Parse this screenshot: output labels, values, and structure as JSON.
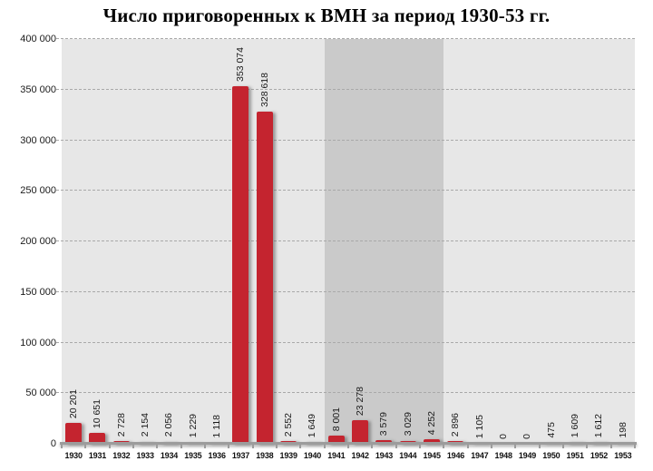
{
  "page": {
    "background": "#ffffff"
  },
  "chart_data": {
    "type": "bar",
    "title": "Число приговоренных к ВМН за период 1930-53 гг.",
    "categories": [
      "1930",
      "1931",
      "1932",
      "1933",
      "1934",
      "1935",
      "1936",
      "1937",
      "1938",
      "1939",
      "1940",
      "1941",
      "1942",
      "1943",
      "1944",
      "1945",
      "1946",
      "1947",
      "1948",
      "1949",
      "1950",
      "1951",
      "1952",
      "1953"
    ],
    "values": [
      20201,
      10651,
      2728,
      2154,
      2056,
      1229,
      1118,
      353074,
      328618,
      2552,
      1649,
      8001,
      23278,
      3579,
      3029,
      4252,
      2896,
      1105,
      0,
      0,
      475,
      1609,
      1612,
      198
    ],
    "value_labels": [
      "20 201",
      "10 651",
      "2 728",
      "2 154",
      "2 056",
      "1 229",
      "1 118",
      "353 074",
      "328 618",
      "2 552",
      "1 649",
      "8 001",
      "23 278",
      "3 579",
      "3 029",
      "4 252",
      "2 896",
      "1 105",
      "0",
      "0",
      "475",
      "1 609",
      "1 612",
      "198"
    ],
    "xlabel": "",
    "ylabel": "",
    "ylim": [
      0,
      400000
    ],
    "ytick_step": 50000,
    "y_tick_labels": [
      "0",
      "50 000",
      "100 000",
      "150 000",
      "200 000",
      "250 000",
      "300 000",
      "350 000",
      "400 000"
    ],
    "grid": "horizontal-dashed",
    "legend": "none",
    "highlight_band": {
      "from": "1941",
      "to": "1945",
      "color": "#cacaca"
    },
    "colors": {
      "bar": "#c4242f",
      "plot_background": "#e7e7e7",
      "band": "#cacaca",
      "gridline": "#a9a9a9",
      "axis_line": "#9c9c9c",
      "label_text": "#1a1a1a"
    }
  }
}
